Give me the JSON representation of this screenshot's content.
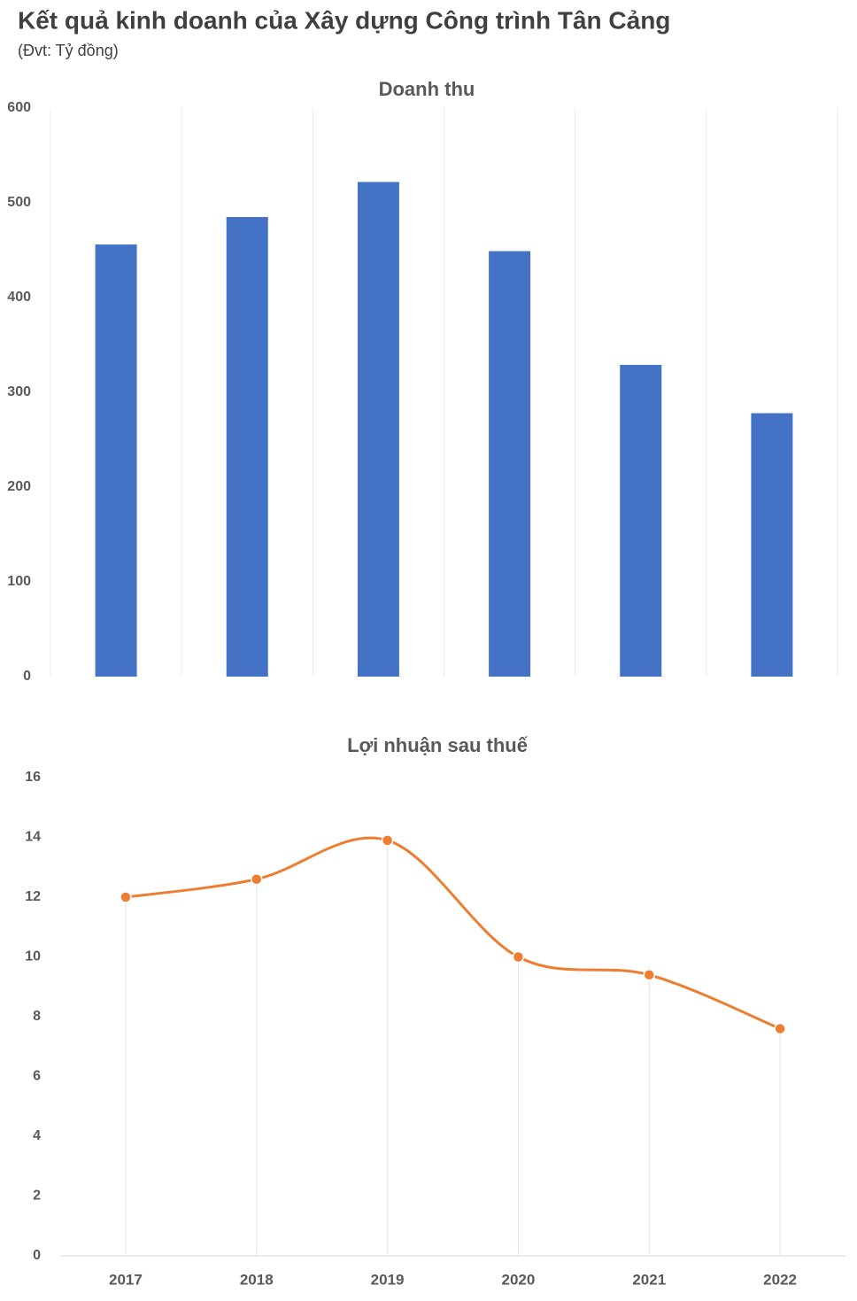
{
  "title": "Kết quả kinh doanh của Xây dựng Công trình Tân Cảng",
  "subtitle": "(Đvt: Tỷ đồng)",
  "chart_data": [
    {
      "type": "bar",
      "title": "Doanh thu",
      "categories": [
        null,
        null,
        null,
        null,
        null,
        null
      ],
      "values": [
        456,
        485,
        522,
        449,
        329,
        278
      ],
      "color": "#4472c4",
      "ylim": [
        0,
        600
      ],
      "yticks": [
        0,
        100,
        200,
        300,
        400,
        500,
        600
      ],
      "grid": true
    },
    {
      "type": "line",
      "title": "Lợi nhuận sau thuế",
      "categories": [
        "2017",
        "2018",
        "2019",
        "2020",
        "2021",
        "2022"
      ],
      "values": [
        12,
        12.6,
        13.9,
        10,
        9.4,
        7.6
      ],
      "color": "#ed7d31",
      "ylim": [
        0,
        16
      ],
      "yticks": [
        0,
        2,
        4,
        6,
        8,
        10,
        12,
        14,
        16
      ],
      "smooth": true,
      "drop_lines": true
    }
  ]
}
